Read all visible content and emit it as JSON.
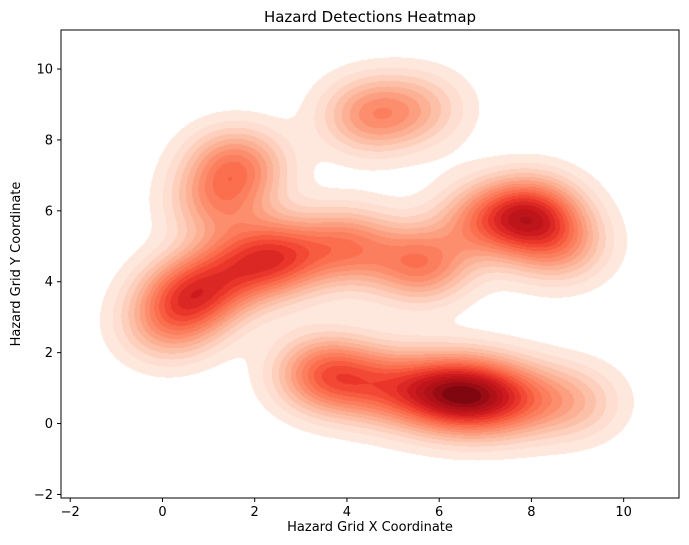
{
  "chart_data": {
    "type": "heatmap",
    "subtype": "kde-density",
    "title": "Hazard Detections Heatmap",
    "xlabel": "Hazard Grid X Coordinate",
    "ylabel": "Hazard Grid Y Coordinate",
    "xlim": [
      -2.2,
      11.2
    ],
    "ylim": [
      -2.1,
      11.1
    ],
    "xticks": [
      -2,
      0,
      2,
      4,
      6,
      8,
      10
    ],
    "yticks": [
      -2,
      0,
      2,
      4,
      6,
      8,
      10
    ],
    "colormap": [
      "#fff5f0",
      "#fee0d2",
      "#fcbba1",
      "#fc9272",
      "#fb6a4a",
      "#ef3b2c",
      "#cb181d",
      "#a50f15",
      "#67000d"
    ],
    "hotspots": [
      {
        "x": 6.6,
        "y": 0.8,
        "intensity": 1.0
      },
      {
        "x": 5.6,
        "y": 0.9,
        "intensity": 0.65
      },
      {
        "x": 7.6,
        "y": 0.7,
        "intensity": 0.55
      },
      {
        "x": 3.5,
        "y": 1.4,
        "intensity": 0.7
      },
      {
        "x": 4.5,
        "y": 1.1,
        "intensity": 0.45
      },
      {
        "x": 8.9,
        "y": 0.6,
        "intensity": 0.35
      },
      {
        "x": 0.6,
        "y": 3.6,
        "intensity": 0.78
      },
      {
        "x": 0.1,
        "y": 2.7,
        "intensity": 0.4
      },
      {
        "x": 2.5,
        "y": 4.7,
        "intensity": 0.78
      },
      {
        "x": 1.5,
        "y": 4.3,
        "intensity": 0.5
      },
      {
        "x": 4.0,
        "y": 5.0,
        "intensity": 0.6
      },
      {
        "x": 5.6,
        "y": 4.5,
        "intensity": 0.65
      },
      {
        "x": 8.0,
        "y": 5.9,
        "intensity": 0.88
      },
      {
        "x": 7.0,
        "y": 5.7,
        "intensity": 0.5
      },
      {
        "x": 8.6,
        "y": 5.0,
        "intensity": 0.45
      },
      {
        "x": 1.6,
        "y": 7.3,
        "intensity": 0.6
      },
      {
        "x": 1.2,
        "y": 6.2,
        "intensity": 0.45
      },
      {
        "x": 4.5,
        "y": 8.7,
        "intensity": 0.52
      },
      {
        "x": 5.6,
        "y": 8.9,
        "intensity": 0.3
      }
    ]
  }
}
